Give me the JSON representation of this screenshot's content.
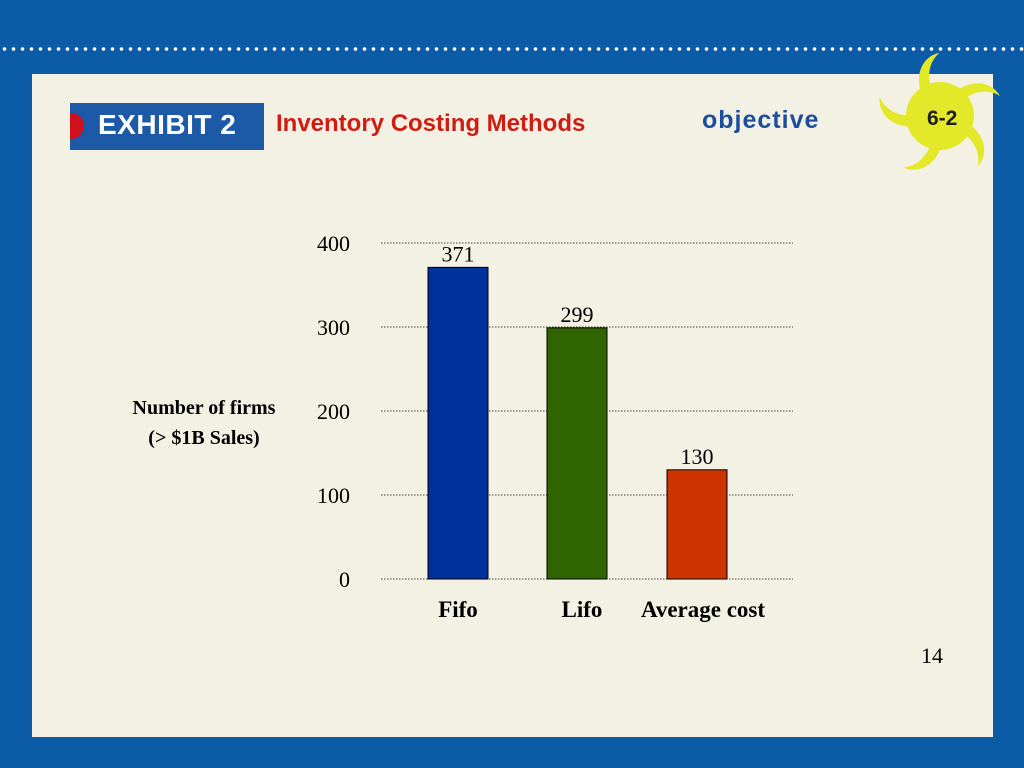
{
  "header": {
    "exhibit_label": "EXHIBIT 2",
    "title": "Inventory Costing Methods",
    "objective_label": "objective",
    "objective_number": "6-2"
  },
  "footer": {
    "page_number": "14"
  },
  "colors": {
    "background_frame": "#0b5ba6",
    "slide": "#f3f0e4",
    "title_red": "#d01c12",
    "badge_yellow": "#e3e829"
  },
  "chart_data": {
    "type": "bar",
    "categories": [
      "Fifo",
      "Lifo",
      "Average cost"
    ],
    "values": [
      371,
      299,
      130
    ],
    "bar_colors": [
      "#00309a",
      "#2f6400",
      "#cc3300"
    ],
    "ylabel": "Number of firms (> $1B Sales)",
    "ylabel_lines": [
      "Number of firms",
      "(> $1B Sales)"
    ],
    "ylim": [
      0,
      400
    ],
    "yticks": [
      0,
      100,
      200,
      300,
      400
    ],
    "grid": true,
    "legend": "none"
  }
}
